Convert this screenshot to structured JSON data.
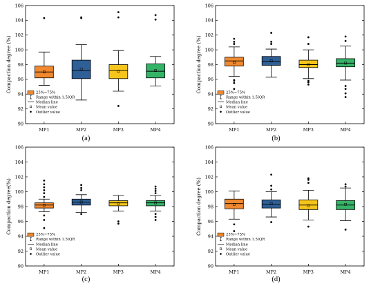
{
  "figure": {
    "colors": {
      "MP1": "#f0892f",
      "MP2": "#2e5f96",
      "MP3": "#f6c51b",
      "MP4": "#35b468",
      "axis": "#000000",
      "median": "#000000"
    }
  },
  "chart_data": [
    {
      "type": "box",
      "panel_label": "(a)",
      "ylabel": "Compaction degree (%)",
      "ylim": [
        90,
        106
      ],
      "yticks": [
        90,
        92,
        94,
        96,
        98,
        100,
        102,
        104,
        106
      ],
      "categories": [
        "MP1",
        "MP2",
        "MP3",
        "MP4"
      ],
      "legend": {
        "position": "bottom-left",
        "entries": [
          "25%~75%",
          "Range within 1.5IQR",
          "Median line",
          "Mean value",
          "Outlier value"
        ]
      },
      "boxes": [
        {
          "name": "MP1",
          "whisker_low": 95.2,
          "q1": 96.2,
          "median": 97.0,
          "q3": 97.8,
          "whisker_high": 99.7,
          "mean": 97.0,
          "outliers": [
            104.3
          ]
        },
        {
          "name": "MP2",
          "whisker_low": 93.2,
          "q1": 96.1,
          "median": 97.2,
          "q3": 98.6,
          "whisker_high": 100.7,
          "mean": 97.4,
          "outliers": [
            104.3,
            104.4
          ]
        },
        {
          "name": "MP3",
          "whisker_low": 94.4,
          "q1": 96.1,
          "median": 97.2,
          "q3": 98.0,
          "whisker_high": 99.9,
          "mean": 97.1,
          "outliers": [
            92.4,
            104.4,
            105.1
          ]
        },
        {
          "name": "MP4",
          "whisker_low": 95.1,
          "q1": 96.2,
          "median": 97.1,
          "q3": 98.1,
          "whisker_high": 99.1,
          "mean": 97.2,
          "outliers": [
            104.1,
            104.7
          ]
        }
      ]
    },
    {
      "type": "box",
      "panel_label": "(b)",
      "ylabel": "Compaction degree (%)",
      "ylim": [
        90,
        106
      ],
      "yticks": [
        90,
        92,
        94,
        96,
        98,
        100,
        102,
        104,
        106
      ],
      "categories": [
        "MP1",
        "MP2",
        "MP3",
        "MP4"
      ],
      "legend": {
        "position": "bottom-left",
        "entries": [
          "25%~75%",
          "Range within 1.5IQR",
          "Median line",
          "Mean value",
          "Outlier value"
        ]
      },
      "boxes": [
        {
          "name": "MP1",
          "whisker_low": 96.4,
          "q1": 97.8,
          "median": 98.5,
          "q3": 99.0,
          "whisker_high": 100.4,
          "mean": 98.3,
          "outliers": [
            94.7,
            95.5,
            95.8,
            95.9,
            100.8,
            101.1,
            101.5
          ]
        },
        {
          "name": "MP2",
          "whisker_low": 96.3,
          "q1": 97.9,
          "median": 98.4,
          "q3": 99.1,
          "whisker_high": 100.1,
          "mean": 98.5,
          "outliers": [
            100.8,
            101.1,
            102.3
          ]
        },
        {
          "name": "MP3",
          "whisker_low": 96.1,
          "q1": 97.6,
          "median": 98.0,
          "q3": 98.6,
          "whisker_high": 100.0,
          "mean": 98.0,
          "outliers": [
            95.3,
            95.6,
            95.8,
            100.8,
            101.7
          ]
        },
        {
          "name": "MP4",
          "whisker_low": 95.9,
          "q1": 97.7,
          "median": 98.2,
          "q3": 98.8,
          "whisker_high": 100.5,
          "mean": 98.2,
          "outliers": [
            93.6,
            94.1,
            94.7,
            95.1,
            101.2,
            101.8
          ]
        }
      ]
    },
    {
      "type": "box",
      "panel_label": "(c)",
      "ylabel": "Compaction degree(%)",
      "ylim": [
        90,
        106
      ],
      "yticks": [
        90,
        92,
        94,
        96,
        98,
        100,
        102,
        104,
        106
      ],
      "categories": [
        "MP1",
        "MP2",
        "MP3",
        "MP4"
      ],
      "legend": {
        "position": "bottom-left",
        "entries": [
          "25%~75%",
          "Range within 1.5IQR",
          "Median line",
          "Mean value",
          "Outlier value"
        ]
      },
      "boxes": [
        {
          "name": "MP1",
          "whisker_low": 97.3,
          "q1": 97.8,
          "median": 98.2,
          "q3": 98.5,
          "whisker_high": 99.0,
          "mean": 98.2,
          "outliers": [
            95.1,
            96.2,
            96.8,
            99.3,
            99.8,
            100.2,
            100.6,
            101.0,
            101.5
          ]
        },
        {
          "name": "MP2",
          "whisker_low": 97.2,
          "q1": 98.2,
          "median": 98.6,
          "q3": 99.0,
          "whisker_high": 99.6,
          "mean": 98.6,
          "outliers": [
            97.0,
            100.2,
            100.5,
            100.9
          ]
        },
        {
          "name": "MP3",
          "whisker_low": 97.4,
          "q1": 98.1,
          "median": 98.5,
          "q3": 98.8,
          "whisker_high": 99.5,
          "mean": 98.4,
          "outliers": [
            95.7,
            96.0
          ]
        },
        {
          "name": "MP4",
          "whisker_low": 97.4,
          "q1": 98.1,
          "median": 98.5,
          "q3": 98.8,
          "whisker_high": 99.5,
          "mean": 98.5,
          "outliers": [
            96.2,
            96.6,
            97.0,
            99.8,
            100.1,
            100.4,
            100.7
          ]
        }
      ]
    },
    {
      "type": "box",
      "panel_label": "(d)",
      "ylabel": "Compaction degree (%)",
      "ylim": [
        90,
        106
      ],
      "yticks": [
        90,
        92,
        94,
        96,
        98,
        100,
        102,
        104,
        106
      ],
      "categories": [
        "MP1",
        "MP2",
        "MP3",
        "MP4"
      ],
      "legend": {
        "position": "bottom-left",
        "entries": [
          "25%~75%",
          "Range within 1.5IQR",
          "Median line",
          "Mean value",
          "Outlier value"
        ]
      },
      "boxes": [
        {
          "name": "MP1",
          "whisker_low": 96.3,
          "q1": 97.7,
          "median": 98.4,
          "q3": 99.0,
          "whisker_high": 100.1,
          "mean": 98.3,
          "outliers": [
            94.7,
            95.6
          ]
        },
        {
          "name": "MP2",
          "whisker_low": 96.6,
          "q1": 97.8,
          "median": 98.3,
          "q3": 98.9,
          "whisker_high": 100.0,
          "mean": 98.4,
          "outliers": [
            95.9,
            100.3,
            100.8,
            102.3
          ]
        },
        {
          "name": "MP3",
          "whisker_low": 96.2,
          "q1": 97.6,
          "median": 98.2,
          "q3": 98.9,
          "whisker_high": 100.2,
          "mean": 98.1,
          "outliers": [
            95.3,
            101.2,
            101.6,
            101.8
          ]
        },
        {
          "name": "MP4",
          "whisker_low": 96.1,
          "q1": 97.6,
          "median": 98.2,
          "q3": 98.8,
          "whisker_high": 100.5,
          "mean": 98.3,
          "outliers": [
            94.9,
            100.7,
            101.0
          ]
        }
      ]
    }
  ]
}
